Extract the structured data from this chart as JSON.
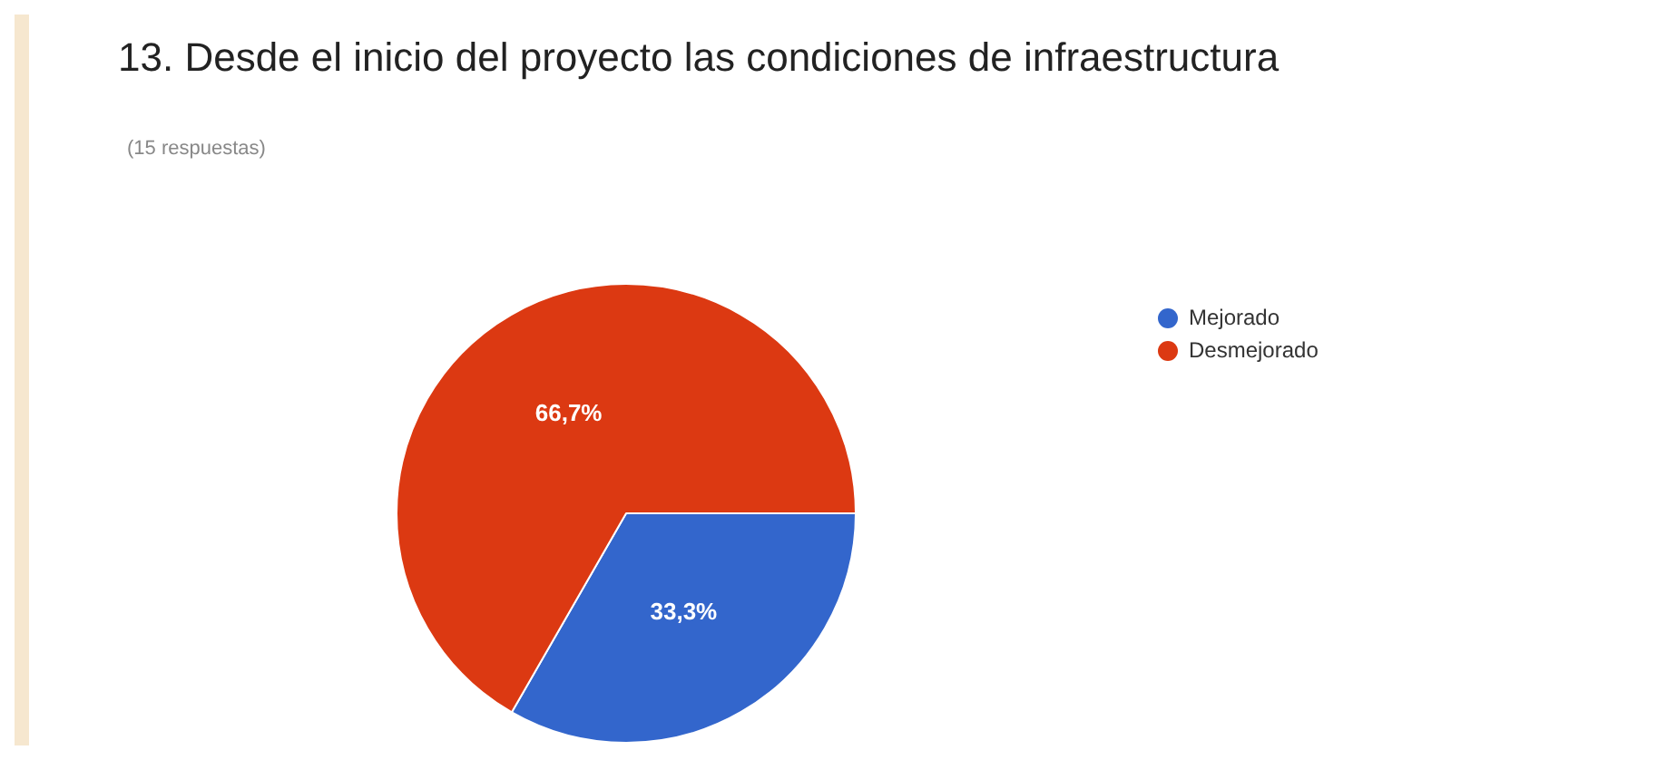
{
  "chart_data": {
    "type": "pie",
    "title": "13. Desde el inicio del proyecto las condiciones de infraestructura",
    "subtitle": "(15 respuestas)",
    "categories": [
      "Mejorado",
      "Desmejorado"
    ],
    "values": [
      33.3,
      66.7
    ],
    "colors": [
      "#3366cc",
      "#dc3912"
    ],
    "value_labels": [
      "33,3%",
      "66,7%"
    ],
    "legend": "top right"
  }
}
